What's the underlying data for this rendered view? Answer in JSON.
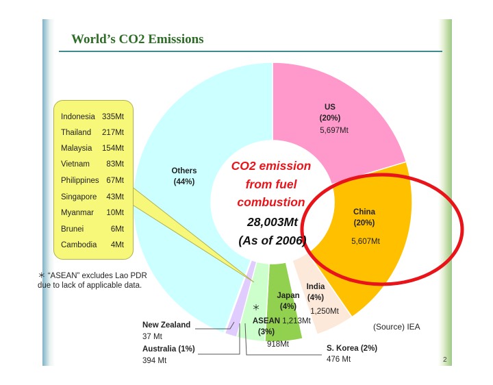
{
  "slide": {
    "title": "World’s CO2 Emissions",
    "page_number": "2",
    "source": "(Source) IEA",
    "footnote_line1": "＊ “ASEAN” excludes Lao PDR",
    "footnote_line2": "due to lack of applicable data."
  },
  "center_text": {
    "line1": "CO2 emission",
    "line2": "from fuel",
    "line3": "combustion",
    "total": "28,003Mt",
    "year": "(As of 2006)"
  },
  "asean_breakdown": [
    {
      "country": "Indonesia",
      "value": "335Mt"
    },
    {
      "country": "Thailand",
      "value": "217Mt"
    },
    {
      "country": "Malaysia",
      "value": "154Mt"
    },
    {
      "country": "Vietnam",
      "value": "83Mt"
    },
    {
      "country": "Philippines",
      "value": "67Mt"
    },
    {
      "country": "Singapore",
      "value": "43Mt"
    },
    {
      "country": "Myanmar",
      "value": "10Mt"
    },
    {
      "country": "Brunei",
      "value": "6Mt"
    },
    {
      "country": "Cambodia",
      "value": "4Mt"
    }
  ],
  "chart_data": {
    "type": "pie",
    "title": "World’s CO2 Emissions",
    "total": 28003,
    "unit": "Mt",
    "slices": [
      {
        "name": "US",
        "share": "(20%)",
        "value": 5697,
        "value_label": "5,697Mt",
        "color": "#ff99cc"
      },
      {
        "name": "China",
        "share": "(20%)",
        "value": 5607,
        "value_label": "5,607Mt",
        "color": "#ffc000"
      },
      {
        "name": "India",
        "share": "(4%)",
        "value": 1250,
        "value_label": "1,250Mt",
        "color": "#fde9d9"
      },
      {
        "name": "S. Korea (2%)",
        "share": "",
        "value": 476,
        "value_label": "476 Mt",
        "color": "#ffffff"
      },
      {
        "name": "Japan",
        "share": "(4%)",
        "value": 1213,
        "value_label": "1,213Mt",
        "color": "#92d050"
      },
      {
        "name": "ASEAN",
        "share": "(3%)",
        "value": 918,
        "value_label": "918Mt",
        "color": "#ccffcc"
      },
      {
        "name": "Australia (1%)",
        "share": "",
        "value": 394,
        "value_label": "394 Mt",
        "color": "#e0ccff"
      },
      {
        "name": "New Zealand",
        "share": "",
        "value": 37,
        "value_label": "37 Mt",
        "color": "#ffffff"
      },
      {
        "name": "Others",
        "share": "(44%)",
        "value": 12411,
        "value_label": "",
        "color": "#ccffff"
      }
    ],
    "highlight": {
      "slice": "China",
      "color": "#e8141a"
    }
  }
}
